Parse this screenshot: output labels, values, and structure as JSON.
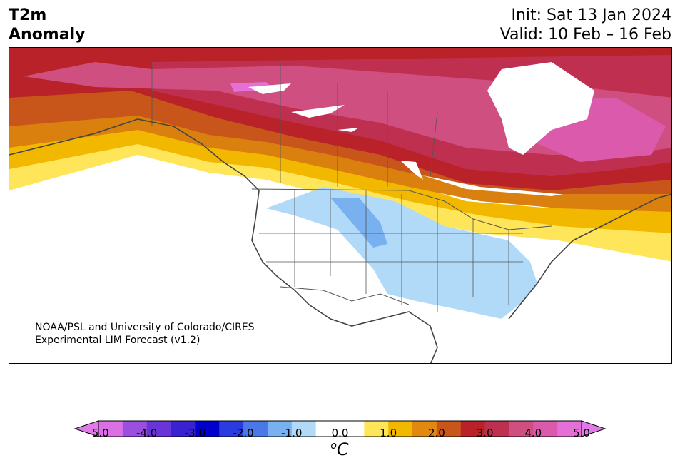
{
  "title": {
    "line1": "T2m",
    "line2": "Anomaly"
  },
  "run_info": {
    "init": "Init: Sat 13 Jan 2024",
    "valid": "Valid: 10 Feb – 16 Feb"
  },
  "credit": {
    "line1": "NOAA/PSL and University of Colorado/CIRES",
    "line2": "Experimental LIM Forecast (v1.2)"
  },
  "colorbar": {
    "units_sup": "o",
    "units_main": "C",
    "ticks": [
      "-5.0",
      "-4.0",
      "-3.0",
      "-2.0",
      "-1.0",
      "0.0",
      "1.0",
      "2.0",
      "3.0",
      "4.0",
      "5.0"
    ],
    "min": -5.0,
    "max": 5.0,
    "colors": [
      "#da70e4",
      "#9a4fe0",
      "#6a35d8",
      "#3b22d0",
      "#0000cc",
      "#2a3be0",
      "#4a78e8",
      "#78b0f0",
      "#b0daf8",
      "#ffffff",
      "#ffffff",
      "#ffe55a",
      "#f2b800",
      "#e08810",
      "#c8561a",
      "#b82228",
      "#bf3050",
      "#cf4f80",
      "#db5aac",
      "#e46fd6"
    ],
    "under_color": "#e07ae8",
    "over_color": "#e07ae8"
  }
}
